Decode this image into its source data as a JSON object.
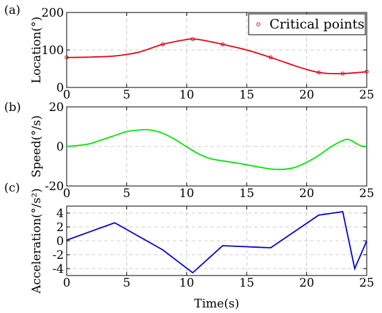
{
  "chart_data": [
    {
      "type": "line",
      "panel_label": "(a)",
      "ylabel": "Location(°)",
      "xlim": [
        0,
        25
      ],
      "ylim": [
        0,
        200
      ],
      "xticks": [
        0,
        5,
        10,
        15,
        20,
        25
      ],
      "yticks": [
        0,
        100,
        200
      ],
      "grid": "x-and-y dashed",
      "legend": {
        "placement": "top-right",
        "label": "Critical points",
        "marker": "circle"
      },
      "series": [
        {
          "color": "#e8000b",
          "x": [
            0,
            2,
            4,
            6,
            8,
            10,
            10.5,
            11,
            12,
            13,
            15,
            17,
            19,
            20,
            21,
            22,
            23,
            24,
            25
          ],
          "y": [
            80,
            81,
            84,
            94,
            115,
            128,
            129,
            128,
            122,
            115,
            100,
            80,
            58,
            48,
            40,
            37,
            37,
            39,
            42
          ]
        }
      ],
      "markers": {
        "x": [
          0,
          8,
          10.5,
          13,
          17,
          21,
          23,
          25
        ],
        "y": [
          80,
          115,
          129,
          115,
          80,
          40,
          37,
          42
        ]
      }
    },
    {
      "type": "line",
      "panel_label": "(b)",
      "ylabel": "Speed(°/s)",
      "xlim": [
        0,
        25
      ],
      "ylim": [
        -20,
        20
      ],
      "xticks": [
        0,
        5,
        10,
        15,
        20,
        25
      ],
      "yticks": [
        -20,
        0,
        20
      ],
      "grid": "x-and-y dashed",
      "series": [
        {
          "color": "#00e600",
          "x": [
            0,
            1,
            2,
            3,
            4,
            5,
            6,
            6.5,
            7,
            8,
            9,
            10,
            11,
            12,
            13,
            14,
            15,
            16,
            17,
            18,
            19,
            20,
            21,
            22,
            23,
            23.5,
            24,
            24.5,
            25
          ],
          "y": [
            0,
            0.5,
            1.5,
            3.5,
            5.5,
            7.5,
            8.3,
            8.5,
            8.3,
            6.7,
            3.6,
            -0.2,
            -3.8,
            -6.2,
            -7.3,
            -8.2,
            -9.3,
            -10.4,
            -11.4,
            -11.6,
            -10.6,
            -8.0,
            -4.5,
            -0.3,
            3.0,
            3.5,
            2.0,
            0.3,
            0
          ]
        }
      ]
    },
    {
      "type": "line",
      "panel_label": "(c)",
      "ylabel": "Acceleration(°/s²)",
      "xlabel": "Time(s)",
      "xlim": [
        0,
        25
      ],
      "ylim": [
        -5,
        5
      ],
      "xticks": [
        0,
        5,
        10,
        15,
        20,
        25
      ],
      "yticks": [
        -4,
        -2,
        0,
        2,
        4
      ],
      "grid": "x-and-y dashed",
      "series": [
        {
          "color": "#0000cc",
          "x": [
            0,
            4,
            8,
            10.5,
            13,
            17,
            21,
            23,
            24,
            25
          ],
          "y": [
            0.1,
            2.6,
            -1.3,
            -4.6,
            -0.7,
            -1.0,
            3.7,
            4.2,
            -4.0,
            0
          ]
        }
      ]
    }
  ]
}
